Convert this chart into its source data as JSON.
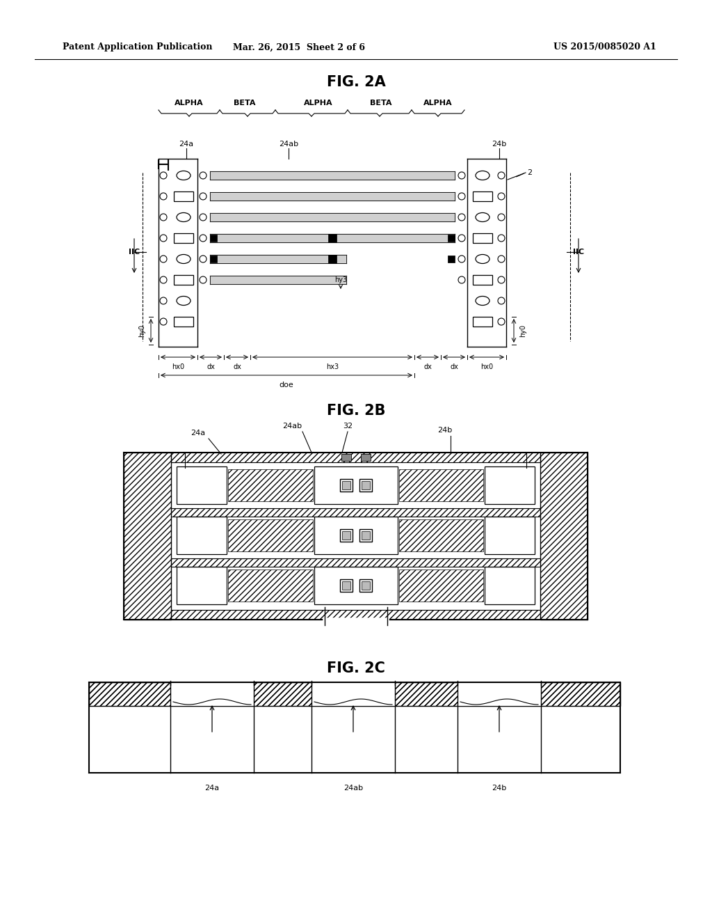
{
  "header_left": "Patent Application Publication",
  "header_mid": "Mar. 26, 2015  Sheet 2 of 6",
  "header_right": "US 2015/0085020 A1",
  "fig2a_title": "FIG. 2A",
  "fig2b_title": "FIG. 2B",
  "fig2c_title": "FIG. 2C",
  "bg_color": "#ffffff",
  "line_color": "#000000"
}
